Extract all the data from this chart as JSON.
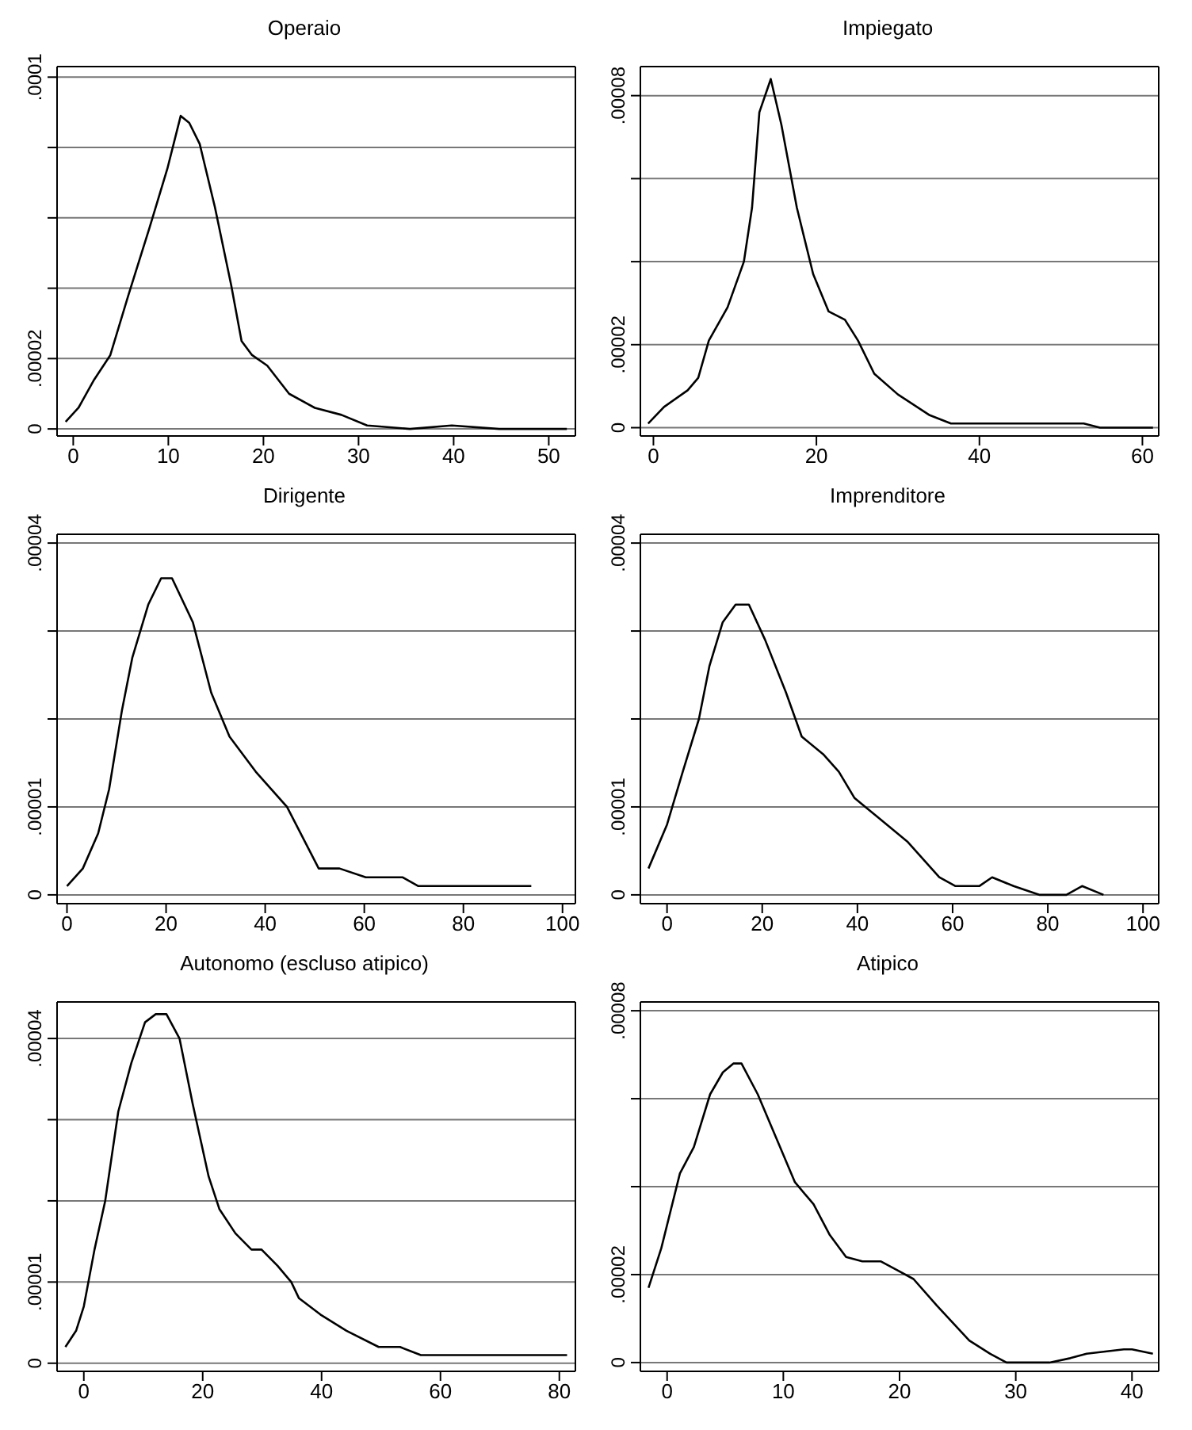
{
  "chart_data": [
    {
      "type": "line",
      "title": "Operaio",
      "color": "#000000",
      "line_style": "solid",
      "grid": "y",
      "x": [
        -0.8,
        0.55,
        2.2,
        3.9,
        5.8,
        8,
        9.9,
        11.3,
        12.2,
        13.3,
        14.9,
        16.6,
        17.7,
        18.8,
        20.4,
        22.7,
        25.4,
        28.2,
        30.9,
        35.4,
        39.8,
        44.8,
        51.9
      ],
      "values": [
        2e-06,
        6e-06,
        1.4e-05,
        2.1e-05,
        3.8e-05,
        5.7e-05,
        7.4e-05,
        8.9e-05,
        8.7e-05,
        8.1e-05,
        6.3e-05,
        4.1e-05,
        2.5e-05,
        2.1e-05,
        1.8e-05,
        1e-05,
        6e-06,
        4e-06,
        1e-06,
        0,
        1e-06,
        0,
        0
      ],
      "xlim": [
        -1.7,
        52.8
      ],
      "xticks": [
        0,
        10,
        20,
        30,
        40,
        50
      ],
      "ylim": [
        -2e-06,
        0.000103
      ],
      "yticks": [
        {
          "value": 0,
          "label": "0"
        },
        {
          "value": 2e-05,
          "label": ".00002"
        },
        {
          "value": 4e-05,
          "label": null
        },
        {
          "value": 6e-05,
          "label": null
        },
        {
          "value": 8e-05,
          "label": null
        },
        {
          "value": 0.0001,
          "label": ".0001"
        }
      ]
    },
    {
      "type": "line",
      "title": "Impiegato",
      "color": "#000000",
      "line_style": "solid",
      "grid": "y",
      "x": [
        -0.65,
        1.3,
        4.2,
        5.5,
        6.8,
        9.1,
        11.1,
        12.1,
        13,
        14.4,
        15.7,
        17.6,
        19.6,
        21.5,
        23.5,
        25.1,
        27.1,
        30,
        33.9,
        36.5,
        41.7,
        52.8,
        54.8,
        57.4,
        61.3
      ],
      "values": [
        1e-06,
        5e-06,
        9e-06,
        1.2e-05,
        2.1e-05,
        2.9e-05,
        4e-05,
        5.3e-05,
        7.6e-05,
        8.4e-05,
        7.3e-05,
        5.3e-05,
        3.7e-05,
        2.8e-05,
        2.6e-05,
        2.1e-05,
        1.3e-05,
        8e-06,
        3e-06,
        1e-06,
        1e-06,
        1e-06,
        0,
        0,
        0
      ],
      "xlim": [
        -1.6,
        62
      ],
      "xticks": [
        0,
        20,
        40,
        60
      ],
      "ylim": [
        -2e-06,
        8.7e-05
      ],
      "yticks": [
        {
          "value": 0,
          "label": "0"
        },
        {
          "value": 2e-05,
          "label": ".00002"
        },
        {
          "value": 4e-05,
          "label": null
        },
        {
          "value": 6e-05,
          "label": null
        },
        {
          "value": 8e-05,
          "label": ".00008"
        }
      ]
    },
    {
      "type": "line",
      "title": "Dirigente",
      "color": "#000000",
      "line_style": "solid",
      "grid": "y",
      "x": [
        0,
        3.2,
        6.3,
        8.5,
        11.1,
        13.2,
        16.4,
        19,
        21.2,
        25.4,
        29.1,
        32.8,
        38.1,
        44.4,
        50.8,
        55,
        60.3,
        67.7,
        70.9,
        77.2,
        80.4,
        85.7,
        93.7
      ],
      "values": [
        1e-06,
        3e-06,
        7e-06,
        1.2e-05,
        2.1e-05,
        2.7e-05,
        3.3e-05,
        3.6e-05,
        3.6e-05,
        3.1e-05,
        2.3e-05,
        1.8e-05,
        1.4e-05,
        1e-05,
        3e-06,
        3e-06,
        2e-06,
        2e-06,
        1e-06,
        1e-06,
        1e-06,
        1e-06,
        1e-06
      ],
      "xlim": [
        -2,
        102.6
      ],
      "xticks": [
        0,
        20,
        40,
        60,
        80,
        100
      ],
      "ylim": [
        -1e-06,
        4.1e-05
      ],
      "yticks": [
        {
          "value": 0,
          "label": "0"
        },
        {
          "value": 1e-05,
          "label": ".00001"
        },
        {
          "value": 2e-05,
          "label": null
        },
        {
          "value": 3e-05,
          "label": null
        },
        {
          "value": 4e-05,
          "label": ".00004"
        }
      ]
    },
    {
      "type": "line",
      "title": "Imprenditore",
      "color": "#000000",
      "line_style": "solid",
      "grid": "y",
      "x": [
        -3.9,
        0,
        3.3,
        6.7,
        8.9,
        11.7,
        14.4,
        17.2,
        20.6,
        25,
        28.3,
        32.8,
        36.1,
        39.4,
        43.9,
        50.6,
        57.2,
        60.6,
        65.6,
        68.3,
        72.8,
        78.3,
        83.9,
        87.2,
        91.7
      ],
      "values": [
        3e-06,
        8e-06,
        1.4e-05,
        2e-05,
        2.6e-05,
        3.1e-05,
        3.3e-05,
        3.3e-05,
        2.9e-05,
        2.3e-05,
        1.8e-05,
        1.6e-05,
        1.4e-05,
        1.1e-05,
        9e-06,
        6e-06,
        2e-06,
        1e-06,
        1e-06,
        2e-06,
        1e-06,
        0,
        0,
        1e-06,
        0
      ],
      "xlim": [
        -5.6,
        103.3
      ],
      "xticks": [
        0,
        20,
        40,
        60,
        80,
        100
      ],
      "ylim": [
        -1e-06,
        4.1e-05
      ],
      "yticks": [
        {
          "value": 0,
          "label": "0"
        },
        {
          "value": 1e-05,
          "label": ".00001"
        },
        {
          "value": 2e-05,
          "label": null
        },
        {
          "value": 3e-05,
          "label": null
        },
        {
          "value": 4e-05,
          "label": ".00004"
        }
      ]
    },
    {
      "type": "line",
      "title": "Autonomo (escluso atipico)",
      "color": "#000000",
      "line_style": "solid",
      "grid": "y",
      "x": [
        -3.1,
        -1.3,
        0,
        1.8,
        3.6,
        5.8,
        8,
        10.3,
        12.1,
        13.9,
        16.1,
        18.3,
        21,
        22.8,
        25.5,
        28.2,
        29.9,
        32.6,
        34.9,
        36.2,
        39.8,
        44.2,
        49.6,
        53.2,
        56.7,
        62.1,
        63.9,
        78.2,
        81.3
      ],
      "values": [
        2e-06,
        4e-06,
        7e-06,
        1.4e-05,
        2e-05,
        3.1e-05,
        3.7e-05,
        4.2e-05,
        4.3e-05,
        4.3e-05,
        4e-05,
        3.2e-05,
        2.3e-05,
        1.9e-05,
        1.6e-05,
        1.4e-05,
        1.4e-05,
        1.2e-05,
        1e-05,
        8e-06,
        6e-06,
        4e-06,
        2e-06,
        2e-06,
        1e-06,
        1e-06,
        1e-06,
        1e-06,
        1e-06
      ],
      "xlim": [
        -4.5,
        82.7
      ],
      "xticks": [
        0,
        20,
        40,
        60,
        80
      ],
      "ylim": [
        -1e-06,
        4.45e-05
      ],
      "yticks": [
        {
          "value": 0,
          "label": "0"
        },
        {
          "value": 1e-05,
          "label": ".00001"
        },
        {
          "value": 2e-05,
          "label": null
        },
        {
          "value": 3e-05,
          "label": null
        },
        {
          "value": 4e-05,
          "label": ".00004"
        }
      ]
    },
    {
      "type": "line",
      "title": "Atipico",
      "color": "#000000",
      "line_style": "solid",
      "grid": "y",
      "x": [
        -1.6,
        -0.5,
        1.1,
        2.3,
        3.7,
        4.8,
        5.7,
        6.4,
        7.8,
        9.4,
        11,
        12.6,
        14,
        15.4,
        16.8,
        18.4,
        19.8,
        21.2,
        23.2,
        26,
        27.8,
        29.2,
        32.9,
        34.7,
        36.1,
        39.3,
        40,
        41.8
      ],
      "values": [
        1.7e-05,
        2.6e-05,
        4.3e-05,
        4.9e-05,
        6.1e-05,
        6.6e-05,
        6.8e-05,
        6.8e-05,
        6.1e-05,
        5.1e-05,
        4.1e-05,
        3.6e-05,
        2.9e-05,
        2.4e-05,
        2.3e-05,
        2.3e-05,
        2.1e-05,
        1.9e-05,
        1.3e-05,
        5e-06,
        2e-06,
        0,
        0,
        1e-06,
        2e-06,
        3e-06,
        3e-06,
        2e-06
      ],
      "xlim": [
        -2.3,
        42.3
      ],
      "xticks": [
        0,
        10,
        20,
        30,
        40
      ],
      "ylim": [
        -2e-06,
        8.2e-05
      ],
      "yticks": [
        {
          "value": 0,
          "label": "0"
        },
        {
          "value": 2e-05,
          "label": ".00002"
        },
        {
          "value": 4e-05,
          "label": null
        },
        {
          "value": 6e-05,
          "label": null
        },
        {
          "value": 8e-05,
          "label": ".00008"
        }
      ]
    }
  ]
}
